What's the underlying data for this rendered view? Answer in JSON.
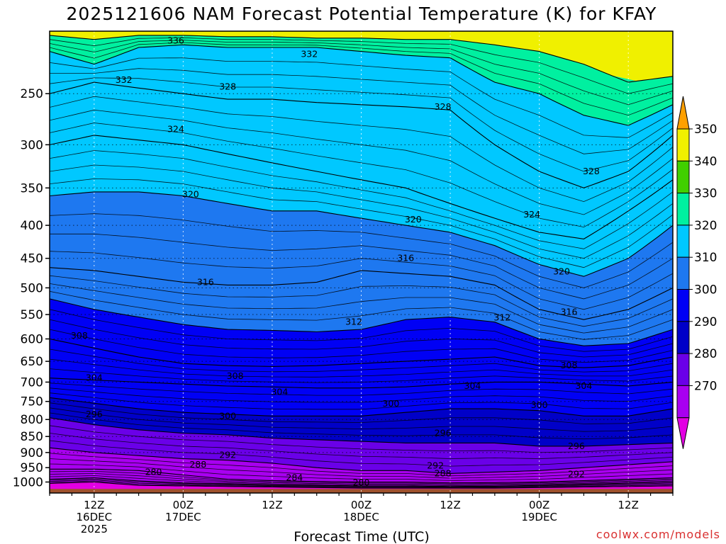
{
  "chart_data": {
    "type": "area",
    "title": "2025121606 NAM Forecast Potential Temperature (K) for KFAY",
    "xlabel": "Forecast Time (UTC)",
    "ylabel": "",
    "credit": "coolwx.com/models",
    "credit_color": "#d93030",
    "variable": "Potential Temperature (K)",
    "station": "KFAY",
    "model": "NAM",
    "init": "2025121606",
    "x_range_hours": [
      0,
      84
    ],
    "y_range_hpa": [
      1040,
      200
    ],
    "y_ticks": [
      250,
      300,
      350,
      400,
      450,
      500,
      550,
      600,
      650,
      700,
      750,
      800,
      850,
      900,
      950,
      1000
    ],
    "x_ticks": [
      {
        "hour": 6,
        "lines": [
          "12Z",
          "16DEC",
          "2025"
        ]
      },
      {
        "hour": 18,
        "lines": [
          "00Z",
          "17DEC"
        ]
      },
      {
        "hour": 30,
        "lines": [
          "12Z"
        ]
      },
      {
        "hour": 42,
        "lines": [
          "00Z",
          "18DEC"
        ]
      },
      {
        "hour": 54,
        "lines": [
          "12Z"
        ]
      },
      {
        "hour": 66,
        "lines": [
          "00Z",
          "19DEC"
        ]
      },
      {
        "hour": 78,
        "lines": [
          "12Z"
        ]
      }
    ],
    "colorbar": {
      "levels": [
        270,
        280,
        290,
        300,
        310,
        320,
        330,
        340,
        350
      ],
      "colors": [
        "#e300e3",
        "#a800f0",
        "#6a00e8",
        "#0000c8",
        "#0000f5",
        "#1e78f0",
        "#00c8ff",
        "#00f0a0",
        "#40d000",
        "#f0f000",
        "#ffa000"
      ]
    },
    "band_colors": [
      {
        "from": 270,
        "to": 280,
        "color": "#e300e3"
      },
      {
        "from": 280,
        "to": 290,
        "color": "#a800f0"
      },
      {
        "from": 290,
        "to": 295,
        "color": "#6a00e8"
      },
      {
        "from": 295,
        "to": 300,
        "color": "#0000c8"
      },
      {
        "from": 300,
        "to": 310,
        "color": "#0000f5"
      },
      {
        "from": 310,
        "to": 320,
        "color": "#1e78f0"
      },
      {
        "from": 320,
        "to": 330,
        "color": "#00c8ff"
      },
      {
        "from": 330,
        "to": 340,
        "color": "#00f0a0"
      },
      {
        "from": 340,
        "to": 350,
        "color": "#40d000"
      },
      {
        "from": 350,
        "to": 360,
        "color": "#f0f000"
      }
    ],
    "ground_color": "#a0522d",
    "ground_top_hpa": 1025,
    "hours": [
      0,
      6,
      12,
      18,
      24,
      30,
      36,
      42,
      48,
      54,
      60,
      66,
      72,
      78,
      84
    ],
    "contours": [
      {
        "level": 280,
        "p": [
          1005,
          1000,
          1012,
          1014,
          1016,
          1018,
          1020,
          1022,
          1022,
          1022,
          1022,
          1020,
          1018,
          1016,
          1014
        ]
      },
      {
        "level": 284,
        "p": [
          990,
          985,
          996,
          1003,
          1006,
          1010,
          1012,
          1014,
          1014,
          1016,
          1015,
          1012,
          1008,
          1004,
          1000
        ]
      },
      {
        "level": 288,
        "p": [
          955,
          955,
          960,
          975,
          990,
          995,
          998,
          1000,
          1000,
          1003,
          1002,
          1000,
          995,
          990,
          985
        ]
      },
      {
        "level": 292,
        "p": [
          885,
          900,
          910,
          920,
          925,
          935,
          950,
          960,
          960,
          970,
          965,
          960,
          950,
          940,
          930
        ]
      },
      {
        "level": 296,
        "p": [
          795,
          815,
          830,
          840,
          845,
          855,
          860,
          865,
          870,
          870,
          870,
          880,
          880,
          875,
          870
        ]
      },
      {
        "level": 300,
        "p": [
          740,
          755,
          770,
          780,
          785,
          790,
          790,
          790,
          780,
          770,
          770,
          775,
          790,
          790,
          770
        ]
      },
      {
        "level": 304,
        "p": [
          690,
          695,
          700,
          705,
          710,
          712,
          715,
          715,
          712,
          705,
          700,
          700,
          705,
          710,
          700
        ]
      },
      {
        "level": 308,
        "p": [
          600,
          620,
          640,
          655,
          660,
          662,
          660,
          655,
          650,
          645,
          640,
          660,
          665,
          660,
          640
        ]
      },
      {
        "level": 312,
        "p": [
          520,
          540,
          555,
          570,
          580,
          582,
          585,
          580,
          560,
          555,
          565,
          600,
          615,
          610,
          580
        ]
      },
      {
        "level": 316,
        "p": [
          465,
          470,
          480,
          490,
          495,
          495,
          490,
          470,
          475,
          480,
          495,
          540,
          560,
          540,
          500
        ]
      },
      {
        "level": 320,
        "p": [
          360,
          355,
          355,
          360,
          370,
          380,
          380,
          390,
          400,
          410,
          430,
          460,
          480,
          450,
          400
        ]
      },
      {
        "level": 324,
        "p": [
          300,
          290,
          295,
          300,
          310,
          320,
          330,
          340,
          350,
          370,
          390,
          410,
          420,
          380,
          340
        ]
      },
      {
        "level": 328,
        "p": [
          250,
          240,
          245,
          250,
          255,
          255,
          258,
          260,
          262,
          265,
          300,
          330,
          350,
          330,
          290
        ]
      },
      {
        "level": 332,
        "p": [
          215,
          225,
          212,
          210,
          212,
          212,
          212,
          215,
          218,
          220,
          240,
          250,
          270,
          280,
          260
        ]
      },
      {
        "level": 336,
        "p": [
          203,
          206,
          203,
          203,
          204,
          204,
          205,
          205,
          206,
          206,
          210,
          215,
          225,
          240,
          235
        ]
      }
    ],
    "contour_labels": [
      {
        "text": "336",
        "hour": 17,
        "hpa": 207
      },
      {
        "text": "332",
        "hour": 35,
        "hpa": 217
      },
      {
        "text": "332",
        "hour": 10,
        "hpa": 238
      },
      {
        "text": "328",
        "hour": 24,
        "hpa": 244
      },
      {
        "text": "328",
        "hour": 53,
        "hpa": 262
      },
      {
        "text": "324",
        "hour": 17,
        "hpa": 284
      },
      {
        "text": "328",
        "hour": 73,
        "hpa": 330
      },
      {
        "text": "320",
        "hour": 19,
        "hpa": 358
      },
      {
        "text": "320",
        "hour": 49,
        "hpa": 392
      },
      {
        "text": "324",
        "hour": 65,
        "hpa": 385
      },
      {
        "text": "316",
        "hour": 48,
        "hpa": 450
      },
      {
        "text": "320",
        "hour": 69,
        "hpa": 472
      },
      {
        "text": "316",
        "hour": 21,
        "hpa": 490
      },
      {
        "text": "312",
        "hour": 41,
        "hpa": 565
      },
      {
        "text": "312",
        "hour": 61,
        "hpa": 556
      },
      {
        "text": "316",
        "hour": 70,
        "hpa": 545
      },
      {
        "text": "308",
        "hour": 4,
        "hpa": 593
      },
      {
        "text": "308",
        "hour": 70,
        "hpa": 660
      },
      {
        "text": "304",
        "hour": 6,
        "hpa": 690
      },
      {
        "text": "308",
        "hour": 25,
        "hpa": 685
      },
      {
        "text": "304",
        "hour": 31,
        "hpa": 725
      },
      {
        "text": "304",
        "hour": 57,
        "hpa": 710
      },
      {
        "text": "304",
        "hour": 72,
        "hpa": 710
      },
      {
        "text": "300",
        "hour": 46,
        "hpa": 756
      },
      {
        "text": "300",
        "hour": 66,
        "hpa": 760
      },
      {
        "text": "296",
        "hour": 6,
        "hpa": 785
      },
      {
        "text": "300",
        "hour": 24,
        "hpa": 790
      },
      {
        "text": "296",
        "hour": 53,
        "hpa": 840
      },
      {
        "text": "296",
        "hour": 71,
        "hpa": 880
      },
      {
        "text": "292",
        "hour": 24,
        "hpa": 908
      },
      {
        "text": "292",
        "hour": 52,
        "hpa": 943
      },
      {
        "text": "288",
        "hour": 20,
        "hpa": 940
      },
      {
        "text": "288",
        "hour": 53,
        "hpa": 970
      },
      {
        "text": "292",
        "hour": 71,
        "hpa": 972
      },
      {
        "text": "280",
        "hour": 14,
        "hpa": 965
      },
      {
        "text": "284",
        "hour": 33,
        "hpa": 985
      },
      {
        "text": "280",
        "hour": 42,
        "hpa": 1003
      }
    ]
  }
}
